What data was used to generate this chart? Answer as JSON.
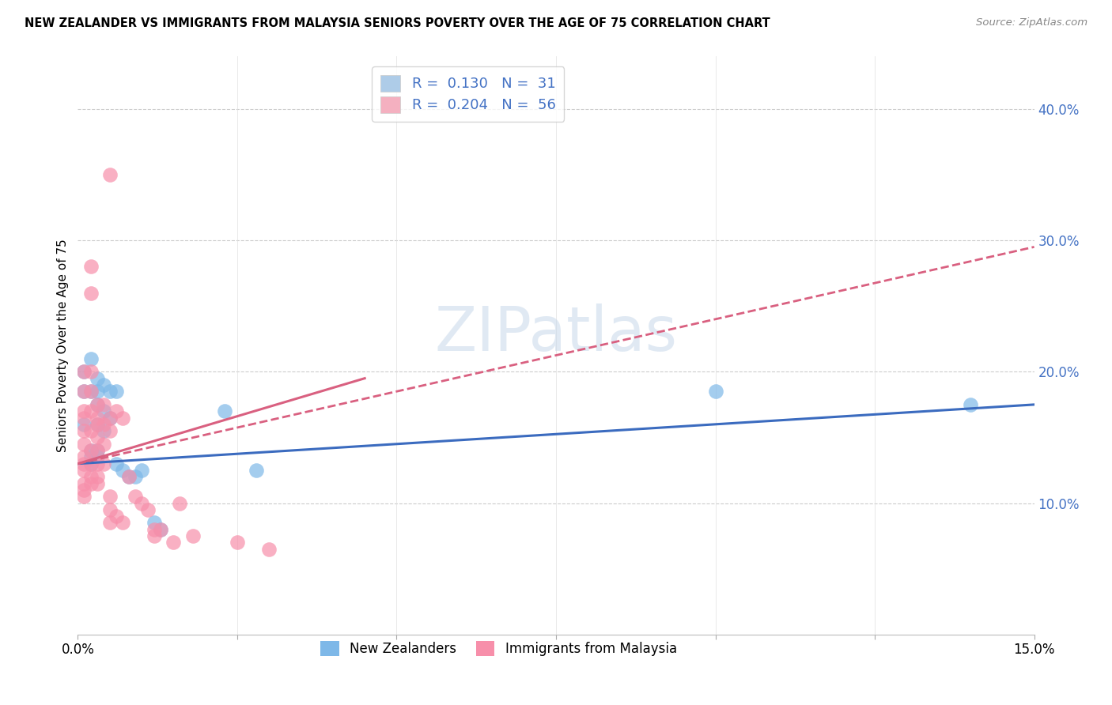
{
  "title": "NEW ZEALANDER VS IMMIGRANTS FROM MALAYSIA SENIORS POVERTY OVER THE AGE OF 75 CORRELATION CHART",
  "source": "Source: ZipAtlas.com",
  "ylabel": "Seniors Poverty Over the Age of 75",
  "xlim": [
    0.0,
    0.15
  ],
  "ylim": [
    0.0,
    0.44
  ],
  "xticks": [
    0.0,
    0.025,
    0.05,
    0.075,
    0.1,
    0.125,
    0.15
  ],
  "xtick_labels": [
    "0.0%",
    "",
    "",
    "",
    "",
    "",
    "15.0%"
  ],
  "yticks_right": [
    0.1,
    0.2,
    0.3,
    0.4
  ],
  "ytick_labels_right": [
    "10.0%",
    "20.0%",
    "30.0%",
    "40.0%"
  ],
  "watermark": "ZIPatlas",
  "nz_color": "#7eb8e8",
  "mal_color": "#f78faa",
  "nz_line_color": "#3b6bbf",
  "mal_line_color": "#d96080",
  "legend_series": [
    {
      "label": "R =  0.130   N =  31",
      "color": "#aecce8"
    },
    {
      "label": "R =  0.204   N =  56",
      "color": "#f4b0c0"
    }
  ],
  "nz_points": [
    [
      0.001,
      0.2
    ],
    [
      0.001,
      0.185
    ],
    [
      0.001,
      0.16
    ],
    [
      0.002,
      0.21
    ],
    [
      0.002,
      0.185
    ],
    [
      0.002,
      0.14
    ],
    [
      0.002,
      0.135
    ],
    [
      0.002,
      0.13
    ],
    [
      0.003,
      0.195
    ],
    [
      0.003,
      0.185
    ],
    [
      0.003,
      0.175
    ],
    [
      0.003,
      0.16
    ],
    [
      0.003,
      0.14
    ],
    [
      0.003,
      0.135
    ],
    [
      0.004,
      0.19
    ],
    [
      0.004,
      0.17
    ],
    [
      0.004,
      0.155
    ],
    [
      0.005,
      0.185
    ],
    [
      0.005,
      0.165
    ],
    [
      0.006,
      0.185
    ],
    [
      0.006,
      0.13
    ],
    [
      0.007,
      0.125
    ],
    [
      0.008,
      0.12
    ],
    [
      0.009,
      0.12
    ],
    [
      0.01,
      0.125
    ],
    [
      0.012,
      0.085
    ],
    [
      0.013,
      0.08
    ],
    [
      0.023,
      0.17
    ],
    [
      0.028,
      0.125
    ],
    [
      0.1,
      0.185
    ],
    [
      0.14,
      0.175
    ]
  ],
  "mal_points": [
    [
      0.001,
      0.2
    ],
    [
      0.001,
      0.185
    ],
    [
      0.001,
      0.17
    ],
    [
      0.001,
      0.165
    ],
    [
      0.001,
      0.155
    ],
    [
      0.001,
      0.145
    ],
    [
      0.001,
      0.135
    ],
    [
      0.001,
      0.13
    ],
    [
      0.001,
      0.125
    ],
    [
      0.001,
      0.115
    ],
    [
      0.001,
      0.11
    ],
    [
      0.001,
      0.105
    ],
    [
      0.002,
      0.28
    ],
    [
      0.002,
      0.26
    ],
    [
      0.002,
      0.2
    ],
    [
      0.002,
      0.185
    ],
    [
      0.002,
      0.17
    ],
    [
      0.002,
      0.155
    ],
    [
      0.002,
      0.14
    ],
    [
      0.002,
      0.13
    ],
    [
      0.002,
      0.12
    ],
    [
      0.002,
      0.115
    ],
    [
      0.003,
      0.175
    ],
    [
      0.003,
      0.165
    ],
    [
      0.003,
      0.16
    ],
    [
      0.003,
      0.15
    ],
    [
      0.003,
      0.14
    ],
    [
      0.003,
      0.13
    ],
    [
      0.003,
      0.12
    ],
    [
      0.003,
      0.115
    ],
    [
      0.004,
      0.175
    ],
    [
      0.004,
      0.16
    ],
    [
      0.004,
      0.145
    ],
    [
      0.004,
      0.13
    ],
    [
      0.005,
      0.35
    ],
    [
      0.005,
      0.165
    ],
    [
      0.005,
      0.155
    ],
    [
      0.005,
      0.105
    ],
    [
      0.005,
      0.095
    ],
    [
      0.005,
      0.085
    ],
    [
      0.006,
      0.17
    ],
    [
      0.006,
      0.09
    ],
    [
      0.007,
      0.165
    ],
    [
      0.007,
      0.085
    ],
    [
      0.008,
      0.12
    ],
    [
      0.009,
      0.105
    ],
    [
      0.01,
      0.1
    ],
    [
      0.011,
      0.095
    ],
    [
      0.012,
      0.08
    ],
    [
      0.012,
      0.075
    ],
    [
      0.013,
      0.08
    ],
    [
      0.015,
      0.07
    ],
    [
      0.016,
      0.1
    ],
    [
      0.018,
      0.075
    ],
    [
      0.025,
      0.07
    ],
    [
      0.03,
      0.065
    ]
  ]
}
